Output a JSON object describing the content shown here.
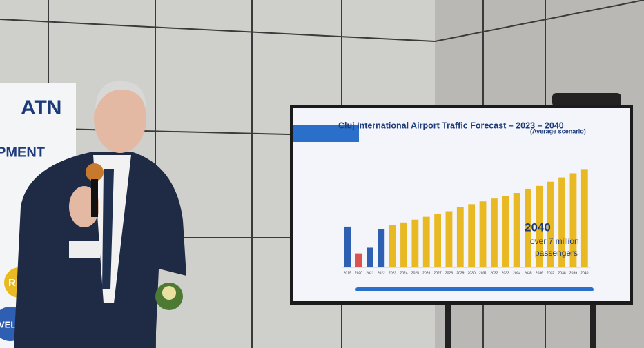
{
  "banner": {
    "logo": "ATN",
    "text": "PMENT",
    "badges": [
      "REG",
      "VELOPI"
    ]
  },
  "screen": {
    "title": "Cluj International Airport Traffic Forecast – 2023 – 2040",
    "subtitle": "(Average scenario)",
    "callout": {
      "year": "2040",
      "line1": "over 7 million",
      "line2": "passengers"
    },
    "chart": {
      "type": "bar",
      "categories": [
        "2019",
        "2020",
        "2021",
        "2022",
        "2023",
        "2024",
        "2025",
        "2026",
        "2027",
        "2028",
        "2029",
        "2030",
        "2031",
        "2032",
        "2033",
        "2034",
        "2035",
        "2036",
        "2037",
        "2038",
        "2039",
        "2040"
      ],
      "values": [
        2.9,
        1.0,
        1.4,
        2.7,
        3.0,
        3.2,
        3.4,
        3.6,
        3.8,
        4.0,
        4.3,
        4.5,
        4.7,
        4.9,
        5.1,
        5.3,
        5.6,
        5.8,
        6.1,
        6.4,
        6.7,
        7.0
      ],
      "colors": [
        "#2f5fb3",
        "#d9534f",
        "#2f5fb3",
        "#2f5fb3",
        "#e8b923",
        "#e8b923",
        "#e8b923",
        "#e8b923",
        "#e8b923",
        "#e8b923",
        "#e8b923",
        "#e8b923",
        "#e8b923",
        "#e8b923",
        "#e8b923",
        "#e8b923",
        "#e8b923",
        "#e8b923",
        "#e8b923",
        "#e8b923",
        "#e8b923",
        "#e8b923"
      ],
      "ylim": [
        0,
        8
      ]
    }
  }
}
